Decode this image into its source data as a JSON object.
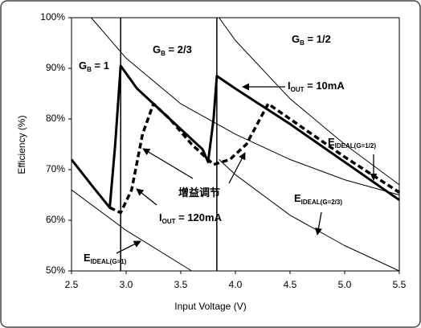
{
  "chart_data": {
    "type": "line",
    "xlabel": "Input Voltage (V)",
    "ylabel": "Efficiency (%)",
    "xlim": [
      2.5,
      5.5
    ],
    "ylim": [
      50,
      100
    ],
    "xticks": [
      2.5,
      {
        "value": 3,
        "label": "3.0"
      },
      3.5,
      {
        "value": 4,
        "label": "4.0"
      },
      4.5,
      {
        "value": 5,
        "label": "5.0"
      },
      5.5
    ],
    "yticks": [
      {
        "value": 50,
        "label": "50%"
      },
      {
        "value": 60,
        "label": "60%"
      },
      {
        "value": 70,
        "label": "70%"
      },
      {
        "value": 80,
        "label": "80%"
      },
      {
        "value": 90,
        "label": "90%"
      },
      {
        "value": 100,
        "label": "100%"
      }
    ],
    "vlines": [
      2.95,
      3.83
    ],
    "series": [
      {
        "color": "#000000",
        "width": 3,
        "dash": false,
        "x": [
          2.5,
          2.7,
          2.85,
          2.9,
          2.95,
          3.1,
          3.3,
          3.5,
          3.7,
          3.75,
          3.8,
          3.83,
          4.0,
          4.5,
          5.0,
          5.5
        ],
        "values": [
          72,
          66.5,
          62.5,
          75,
          90.5,
          86,
          82,
          78,
          74,
          71.5,
          80,
          88.5,
          86,
          79,
          71.5,
          64
        ]
      },
      {
        "color": "#000000",
        "width": 3.5,
        "dash": true,
        "x": [
          2.85,
          2.95,
          3.05,
          3.15,
          3.25,
          3.4,
          3.6,
          3.8,
          3.95,
          4.1,
          4.3,
          4.5,
          5.0,
          5.5
        ],
        "values": [
          62.5,
          61.5,
          66,
          77,
          83,
          80,
          75,
          71,
          72,
          75,
          83,
          80,
          72.5,
          65.5
        ]
      },
      {
        "color": "#000000",
        "width": 1,
        "dash": false,
        "x": [
          2.68,
          3.0,
          3.5,
          4.0,
          4.5,
          5.0,
          5.5
        ],
        "values": [
          100,
          92,
          83,
          77,
          72,
          68,
          65
        ]
      },
      {
        "color": "#000000",
        "width": 1,
        "dash": false,
        "x": [
          3.85,
          4.0,
          4.5,
          5.0,
          5.5
        ],
        "values": [
          100,
          95.5,
          84,
          75,
          67
        ]
      },
      {
        "color": "#000000",
        "width": 1,
        "dash": false,
        "x": [
          3.85,
          4.0,
          4.5,
          5.0,
          5.5
        ],
        "values": [
          72,
          69,
          61,
          55,
          50
        ]
      },
      {
        "color": "#000000",
        "width": 1,
        "dash": false,
        "x": [
          2.5,
          3.0,
          3.6
        ],
        "values": [
          66,
          58,
          50
        ]
      }
    ],
    "annotations": [
      {
        "text": "G",
        "sub": "B",
        "rest": " = 1"
      },
      {
        "text": "G",
        "sub": "B",
        "rest": " = 2/3"
      },
      {
        "text": "G",
        "sub": "B",
        "rest": " = 1/2"
      },
      {
        "text": "I",
        "sub": "OUT",
        "rest": " = 10mA"
      },
      {
        "text": "I",
        "sub": "OUT",
        "rest": " = 120mA"
      },
      {
        "text": "E",
        "sub": "IDEAL(G=1/2)"
      },
      {
        "text": "E",
        "sub": "IDEAL(G=2/3)"
      },
      {
        "text": "E",
        "sub": "IDEAL(G=1)"
      },
      {
        "text": "增益调节"
      }
    ]
  }
}
